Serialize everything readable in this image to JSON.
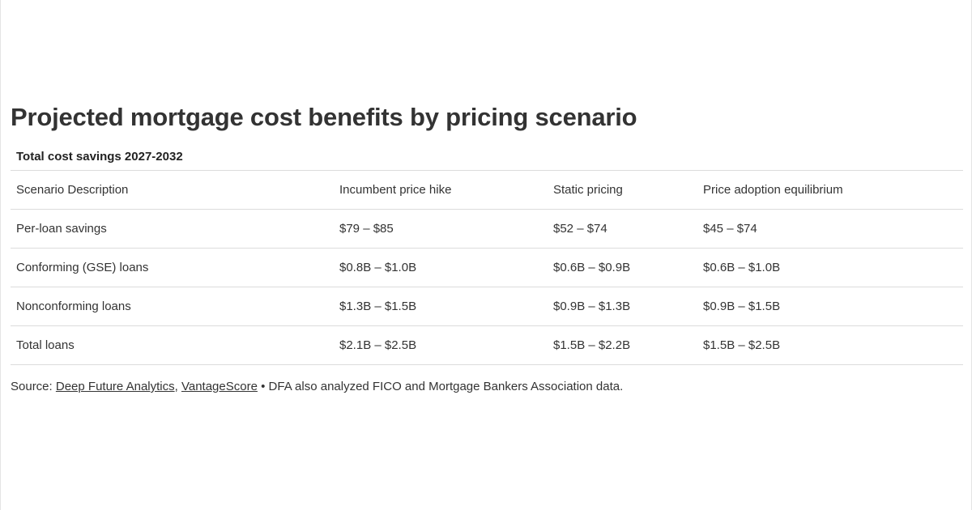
{
  "title": "Projected mortgage cost benefits by pricing scenario",
  "subtitle": "Total cost savings 2027-2032",
  "source": {
    "prefix": "Source: ",
    "links": [
      "Deep Future Analytics",
      "VantageScore"
    ],
    "separator": ", ",
    "note": " • DFA also analyzed FICO and Mortgage Bankers Association data."
  },
  "chart_data": {
    "type": "table",
    "title": "Projected mortgage cost benefits by pricing scenario",
    "subtitle": "Total cost savings 2027-2032",
    "columns": [
      "Scenario Description",
      "Incumbent price hike",
      "Static pricing",
      "Price adoption equilibrium"
    ],
    "rows": [
      [
        "Per-loan savings",
        "$79 – $85",
        "$52 – $74",
        "$45 – $74"
      ],
      [
        "Conforming (GSE) loans",
        "$0.8B – $1.0B",
        "$0.6B – $0.9B",
        "$0.6B – $1.0B"
      ],
      [
        "Nonconforming loans",
        "$1.3B – $1.5B",
        "$0.9B – $1.3B",
        "$0.9B – $1.5B"
      ],
      [
        "Total loans",
        "$2.1B – $2.5B",
        "$1.5B – $2.2B",
        "$1.5B – $2.5B"
      ]
    ]
  }
}
